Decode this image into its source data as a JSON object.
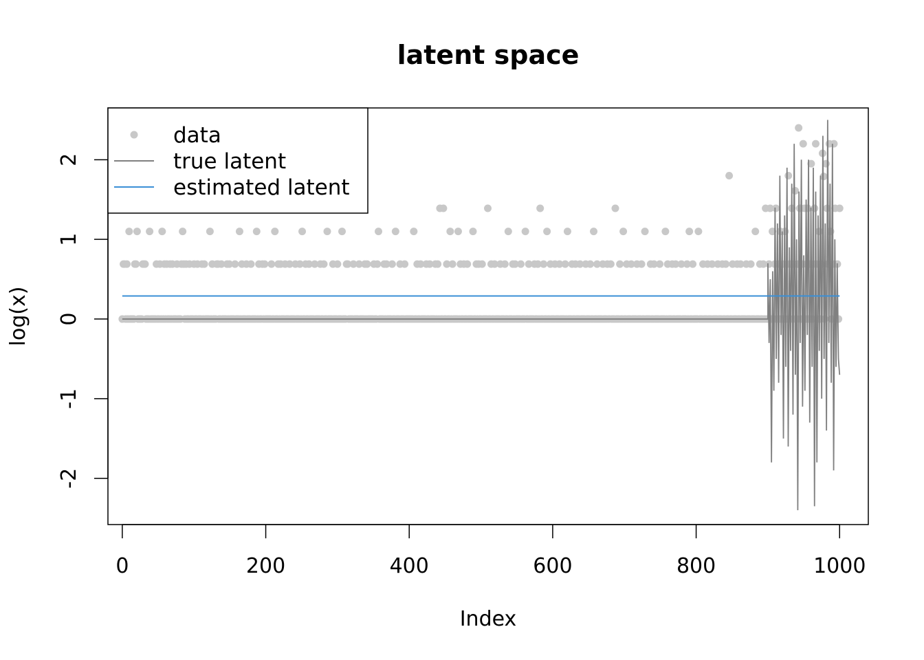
{
  "chart_data": {
    "type": "scatter",
    "title": "latent space",
    "xlabel": "Index",
    "ylabel": "log(x)",
    "xlim": [
      -20,
      1040
    ],
    "ylim": [
      -2.58,
      2.65
    ],
    "xticks": [
      0,
      200,
      400,
      600,
      800,
      1000
    ],
    "yticks": [
      -2,
      -1,
      0,
      1,
      2
    ],
    "grid": false,
    "legend_position": "top-left",
    "legend": [
      {
        "label": "data",
        "kind": "point",
        "color": "#c8c8c8"
      },
      {
        "label": "true latent",
        "kind": "line",
        "color": "#808080"
      },
      {
        "label": "estimated latent",
        "kind": "line",
        "color": "#3a8fd6"
      }
    ],
    "series": [
      {
        "name": "data",
        "kind": "points",
        "color": "#c8c8c8",
        "values": [
          0,
          0.69,
          0.69,
          0,
          0.69,
          0,
          1.1,
          0,
          0,
          0,
          0,
          0.69,
          0.69,
          1.1,
          0,
          0,
          0,
          0,
          0.69,
          0.69,
          0.69,
          0,
          0,
          0,
          1.1,
          0,
          0,
          0,
          0,
          0,
          0.69,
          0,
          0,
          0.69,
          0,
          1.1,
          0,
          0.69,
          0,
          0.69,
          0,
          0,
          0.69,
          0,
          0.69,
          0,
          0,
          0,
          0.69,
          0,
          0,
          0,
          0.69,
          1.1,
          0.69,
          0,
          0.69,
          0,
          0,
          0.69,
          0,
          0,
          0,
          0.69,
          0,
          0,
          0.69,
          0,
          0,
          0,
          0.69,
          0,
          0.69,
          0,
          0,
          0,
          0,
          1.1,
          0,
          0.69,
          0,
          0,
          0,
          0.69,
          0.69,
          0,
          0,
          0.69,
          0,
          0,
          0,
          0,
          0.69,
          0,
          0.69,
          0,
          0,
          0,
          0,
          0.69,
          0,
          0,
          0,
          1.1,
          0,
          0.69,
          0,
          0,
          0,
          0.69,
          0,
          0,
          0,
          0.69,
          0,
          0,
          0,
          0,
          1.1,
          0,
          0.69,
          0,
          0,
          0.69,
          0,
          0.69,
          0,
          0,
          0,
          0,
          0,
          0.69,
          0,
          0,
          1.1,
          0,
          0,
          0.69,
          0,
          0.69,
          0,
          0,
          0,
          0.69,
          0,
          0,
          0,
          0.69,
          0,
          0,
          0,
          0,
          0.69,
          0,
          0,
          0,
          0.69,
          0,
          1.1,
          0,
          0,
          0.69,
          0,
          0,
          0.69,
          0,
          0,
          0,
          0,
          0.69,
          0,
          0,
          0,
          0,
          0.69,
          0,
          0,
          0.69,
          0,
          0,
          1.1,
          0,
          0,
          0,
          0,
          0.69,
          0,
          0,
          0,
          0.69,
          0,
          0,
          0,
          1.1,
          0,
          0,
          0,
          0.69,
          0.69,
          0,
          0,
          0,
          0,
          0.69,
          0,
          0,
          0,
          0,
          0.69,
          0,
          0,
          0,
          0,
          0.69,
          0,
          0.69,
          0,
          0,
          0,
          0,
          0,
          0.69,
          0,
          0,
          0.69,
          1.1,
          0,
          0,
          0,
          0,
          0.69,
          0,
          0.69,
          0,
          0,
          0,
          0,
          0.69,
          0,
          0,
          1.1,
          0,
          0,
          0,
          0.69,
          0,
          0,
          0,
          0.69,
          0,
          0,
          0,
          0,
          0,
          0,
          0,
          1.1,
          0,
          0,
          0.69,
          0,
          0,
          0.69,
          0,
          0,
          0,
          0,
          0.69,
          0,
          0,
          0.69,
          0,
          0,
          0,
          0,
          0.69,
          0,
          0.69,
          0,
          1.39,
          0,
          0,
          1.39,
          0,
          0,
          0.69,
          0,
          0,
          1.1,
          0,
          0.69,
          0,
          0,
          0,
          0,
          1.1,
          0,
          0.69,
          0,
          0,
          0.69,
          0,
          0,
          0.69,
          0,
          0,
          0,
          0,
          1.1,
          0,
          0,
          0.69,
          0,
          0.69,
          0,
          0,
          0.69,
          0,
          0,
          0,
          0,
          1.39,
          0,
          0,
          0.69,
          0,
          0,
          0.69,
          0,
          0,
          0,
          0,
          0.69,
          0,
          0,
          0,
          0.69,
          0,
          0,
          1.1,
          0,
          0,
          0,
          0.69,
          0,
          0.69,
          0,
          0,
          0,
          0,
          0.69,
          0,
          0,
          0,
          1.1,
          0,
          0,
          0.69,
          0,
          0,
          0,
          0,
          0.69,
          0,
          0,
          0.69,
          0,
          1.39,
          0,
          0,
          0.69,
          0,
          0,
          1.1,
          0,
          0,
          0.69,
          0,
          0,
          0,
          0.69,
          0,
          0,
          0,
          0.69,
          0,
          0,
          0,
          0,
          0.69,
          0,
          1.1,
          0,
          0,
          0,
          0.69,
          0,
          0,
          0.69,
          0,
          0,
          0,
          0.69,
          0,
          0,
          0,
          0,
          0.69,
          0,
          0,
          0,
          0.69,
          0,
          0,
          1.1,
          0,
          0,
          0.69,
          0,
          0,
          0,
          0,
          0.69,
          0,
          0,
          0,
          0.69,
          0,
          0,
          0.69,
          0,
          0,
          0,
          1.39,
          0,
          0,
          0,
          0.69,
          0,
          0,
          1.1,
          0,
          0,
          0.69,
          0,
          0,
          0,
          0.69,
          0,
          0,
          0,
          0,
          0.69,
          0,
          0,
          0,
          0.69,
          0,
          0,
          1.1,
          0,
          0,
          0,
          0,
          0.69,
          0,
          0,
          0.69,
          0,
          0,
          0,
          0,
          0.69,
          0,
          0,
          0,
          0,
          1.1,
          0,
          0.69,
          0,
          0,
          0,
          0.69,
          0,
          0,
          0.69,
          0,
          0,
          0,
          0,
          0.69,
          0,
          0,
          0,
          0,
          0.69,
          0,
          1.1,
          0,
          0,
          0.69,
          0,
          0,
          0,
          0,
          1.1,
          0,
          0,
          0,
          0.69,
          0,
          0,
          0,
          0.69,
          0,
          0,
          0,
          0.69,
          0,
          0,
          0,
          0,
          0.69,
          0,
          0,
          0,
          0.69,
          0,
          0,
          0.69,
          0,
          0,
          1.8,
          0,
          0,
          0.69,
          0,
          0,
          0,
          0.69,
          0,
          0,
          0.69,
          0,
          0,
          0,
          0,
          0.69,
          0,
          0,
          0,
          0.69,
          0,
          0,
          0,
          1.1,
          0,
          0,
          0,
          0.69,
          0,
          0,
          0.69,
          0,
          1.39,
          0,
          0,
          0.69,
          1.39,
          0,
          1.1,
          0,
          0.69,
          1.39,
          0,
          0.69,
          0,
          1.1,
          0,
          0.69,
          0,
          1.1,
          0,
          0.69,
          1.8,
          0,
          0.69,
          1.39,
          0,
          0.69,
          1.61,
          0,
          0.69,
          2.4,
          1.39,
          0,
          0.69,
          2.2,
          1.39,
          0,
          0.69,
          1.39,
          0,
          0.69,
          1.95,
          0,
          0.69,
          1.39,
          2.2,
          0,
          0.69,
          1.1,
          0,
          0.69,
          2.08,
          1.79,
          0,
          1.95,
          1.39,
          0.69,
          2.2,
          1.1,
          0,
          0.69,
          2.2,
          1.39,
          0,
          0.69,
          0,
          1.39
        ]
      },
      {
        "name": "true latent",
        "kind": "line",
        "color": "#808080",
        "values_before_900": 0,
        "values_900_to_1000": [
          0.7,
          -0.3,
          0.5,
          -1.8,
          0.6,
          -0.9,
          1.4,
          -0.5,
          1.2,
          -0.8,
          1.8,
          -0.2,
          1.1,
          -1.5,
          1.3,
          -0.6,
          1.9,
          -1.6,
          0.9,
          -0.4,
          1.7,
          -1.2,
          2.2,
          -0.7,
          1.0,
          -2.4,
          1.6,
          -0.3,
          2.0,
          -1.1,
          0.8,
          -0.9,
          1.5,
          -0.2,
          2.0,
          -1.3,
          1.4,
          -0.6,
          1.9,
          -2.35,
          1.6,
          -1.8,
          1.3,
          -0.4,
          1.8,
          -1.0,
          2.3,
          -0.5,
          1.2,
          -1.4,
          2.5,
          -0.3,
          1.7,
          -0.8,
          2.2,
          -1.9,
          1.0,
          -0.6,
          0.7,
          -0.5,
          -0.7
        ]
      },
      {
        "name": "estimated latent",
        "kind": "line",
        "color": "#3a8fd6",
        "x": [
          0,
          1000
        ],
        "values": [
          0.29,
          0.29
        ]
      }
    ]
  }
}
